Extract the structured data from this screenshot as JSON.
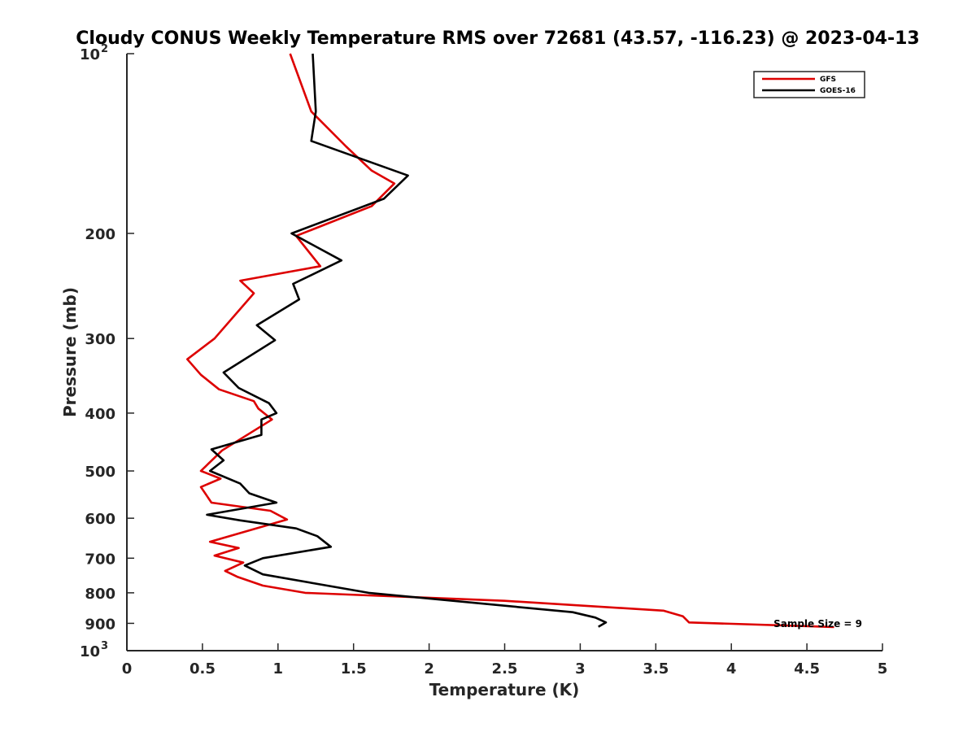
{
  "chart_data": {
    "type": "line",
    "title": "Cloudy CONUS Weekly Temperature RMS over 72681 (43.57, -116.23) @ 2023-04-13",
    "xlabel": "Temperature (K)",
    "ylabel": "Pressure (mb)",
    "xlim": [
      0,
      5
    ],
    "ylim": [
      100,
      1000
    ],
    "y_scale": "log",
    "y_reversed": true,
    "x_ticks": [
      "0",
      "0.5",
      "1",
      "1.5",
      "2",
      "2.5",
      "3",
      "3.5",
      "4",
      "4.5",
      "5"
    ],
    "y_ticks": [
      {
        "value": 100,
        "base": "10",
        "exp": "2"
      },
      {
        "value": 200,
        "label": "200"
      },
      {
        "value": 300,
        "label": "300"
      },
      {
        "value": 400,
        "label": "400"
      },
      {
        "value": 500,
        "label": "500"
      },
      {
        "value": 600,
        "label": "600"
      },
      {
        "value": 700,
        "label": "700"
      },
      {
        "value": 800,
        "label": "800"
      },
      {
        "value": 900,
        "label": "900"
      },
      {
        "value": 1000,
        "base": "10",
        "exp": "3"
      }
    ],
    "grid": false,
    "legend_position": "top-right",
    "annotation": "Sample Size = 9",
    "series": [
      {
        "name": "GFS",
        "color": "#dd0000",
        "points": [
          [
            1.08,
            100
          ],
          [
            1.22,
            125
          ],
          [
            1.45,
            143
          ],
          [
            1.62,
            157
          ],
          [
            1.77,
            165
          ],
          [
            1.62,
            180
          ],
          [
            1.12,
            202
          ],
          [
            1.28,
            227
          ],
          [
            0.75,
            240
          ],
          [
            0.84,
            252
          ],
          [
            0.58,
            300
          ],
          [
            0.4,
            325
          ],
          [
            0.49,
            345
          ],
          [
            0.61,
            365
          ],
          [
            0.84,
            382
          ],
          [
            0.87,
            393
          ],
          [
            0.96,
            410
          ],
          [
            0.63,
            462
          ],
          [
            0.49,
            500
          ],
          [
            0.62,
            515
          ],
          [
            0.49,
            532
          ],
          [
            0.56,
            565
          ],
          [
            0.95,
            583
          ],
          [
            1.06,
            603
          ],
          [
            0.55,
            657
          ],
          [
            0.74,
            673
          ],
          [
            0.58,
            693
          ],
          [
            0.77,
            712
          ],
          [
            0.65,
            735
          ],
          [
            0.73,
            752
          ],
          [
            0.9,
            778
          ],
          [
            1.18,
            800
          ],
          [
            2.5,
            825
          ],
          [
            3.55,
            857
          ],
          [
            3.68,
            876
          ],
          [
            3.72,
            897
          ],
          [
            4.68,
            913
          ]
        ]
      },
      {
        "name": "GOES-16",
        "color": "#000000",
        "points": [
          [
            1.23,
            100
          ],
          [
            1.25,
            125
          ],
          [
            1.22,
            140
          ],
          [
            1.86,
            160
          ],
          [
            1.7,
            175
          ],
          [
            1.09,
            200
          ],
          [
            1.42,
            222
          ],
          [
            1.1,
            243
          ],
          [
            1.14,
            258
          ],
          [
            0.86,
            285
          ],
          [
            0.98,
            302
          ],
          [
            0.64,
            342
          ],
          [
            0.74,
            363
          ],
          [
            0.94,
            385
          ],
          [
            0.99,
            400
          ],
          [
            0.89,
            410
          ],
          [
            0.89,
            435
          ],
          [
            0.56,
            460
          ],
          [
            0.64,
            480
          ],
          [
            0.55,
            500
          ],
          [
            0.75,
            525
          ],
          [
            0.81,
            545
          ],
          [
            0.99,
            565
          ],
          [
            0.53,
            592
          ],
          [
            0.75,
            605
          ],
          [
            1.12,
            624
          ],
          [
            1.26,
            643
          ],
          [
            1.35,
            670
          ],
          [
            0.9,
            700
          ],
          [
            0.78,
            720
          ],
          [
            0.9,
            745
          ],
          [
            1.6,
            800
          ],
          [
            2.95,
            862
          ],
          [
            3.1,
            880
          ],
          [
            3.17,
            897
          ],
          [
            3.12,
            912
          ]
        ]
      }
    ]
  }
}
